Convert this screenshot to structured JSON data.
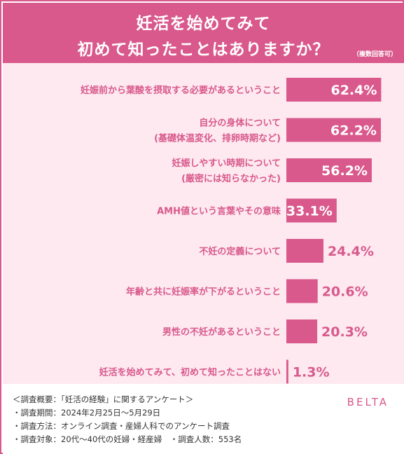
{
  "header": {
    "title_line1": "妊活を始めてみて",
    "title_line2": "初めて知ったことはありますか？",
    "subtitle": "（複数回答可）"
  },
  "colors": {
    "accent": "#d9598c",
    "plot_background": "#fde9ef",
    "bar": "#d9598c",
    "label_text": "#d9598c",
    "value_inside": "#ffffff"
  },
  "chart_data": {
    "type": "bar",
    "orientation": "horizontal",
    "title": "妊活を始めてみて初めて知ったことはありますか？",
    "subtitle": "（複数回答可）",
    "unit": "%",
    "xlim": [
      0,
      100
    ],
    "grid": false,
    "legend": "none",
    "categories": [
      [
        "妊娠前から葉酸を摂取する必要があるということ"
      ],
      [
        "自分の身体について",
        "(基礎体温変化、排卵時期など)"
      ],
      [
        "妊娠しやすい時期について",
        "(厳密には知らなかった)"
      ],
      [
        "AMH値という言葉やその意味"
      ],
      [
        "不妊の定義について"
      ],
      [
        "年齢と共に妊娠率が下がるということ"
      ],
      [
        "男性の不妊があるということ"
      ],
      [
        "妊活を始めてみて、初めて知ったことはない"
      ]
    ],
    "values": [
      62.4,
      62.2,
      56.2,
      33.1,
      24.4,
      20.6,
      20.3,
      1.3
    ],
    "value_labels": [
      "62.4%",
      "62.2%",
      "56.2%",
      "33.1%",
      "24.4%",
      "20.6%",
      "20.3%",
      "1.3%"
    ]
  },
  "footer": {
    "notes": [
      "＜調査概要：「妊活の経験」に関するアンケート＞",
      "・調査期間：2024年2月25日〜5月29日",
      "・調査方法：オンライン調査・産婦人科でのアンケート調査",
      "・調査対象：20代〜40代の妊婦・経産婦　・調査人数：553名"
    ],
    "brand": "BELTA"
  }
}
